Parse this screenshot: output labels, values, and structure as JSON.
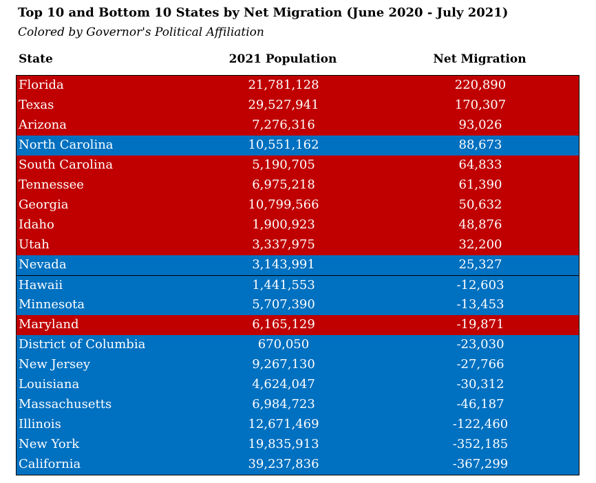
{
  "title": "Top 10 and Bottom 10 States by Net Migration (June 2020 - July 2021)",
  "subtitle": "Colored by Governor's Political Affiliation",
  "colors": {
    "red": "#c00000",
    "blue": "#0070c0",
    "text_on_fill": "#ffffff"
  },
  "chart_data": {
    "type": "table",
    "columns": [
      "State",
      "2021 Population",
      "Net Migration"
    ],
    "rows": [
      {
        "state": "Florida",
        "population": "21,781,128",
        "migration": "220,890",
        "party_color": "red"
      },
      {
        "state": "Texas",
        "population": "29,527,941",
        "migration": "170,307",
        "party_color": "red"
      },
      {
        "state": "Arizona",
        "population": "7,276,316",
        "migration": "93,026",
        "party_color": "red"
      },
      {
        "state": "North Carolina",
        "population": "10,551,162",
        "migration": "88,673",
        "party_color": "blue"
      },
      {
        "state": "South Carolina",
        "population": "5,190,705",
        "migration": "64,833",
        "party_color": "red"
      },
      {
        "state": "Tennessee",
        "population": "6,975,218",
        "migration": "61,390",
        "party_color": "red"
      },
      {
        "state": "Georgia",
        "population": "10,799,566",
        "migration": "50,632",
        "party_color": "red"
      },
      {
        "state": "Idaho",
        "population": "1,900,923",
        "migration": "48,876",
        "party_color": "red"
      },
      {
        "state": "Utah",
        "population": "3,337,975",
        "migration": "32,200",
        "party_color": "red"
      },
      {
        "state": "Nevada",
        "population": "3,143,991",
        "migration": "25,327",
        "party_color": "blue"
      },
      {
        "state": "Hawaii",
        "population": "1,441,553",
        "migration": "-12,603",
        "party_color": "blue"
      },
      {
        "state": "Minnesota",
        "population": "5,707,390",
        "migration": "-13,453",
        "party_color": "blue"
      },
      {
        "state": "Maryland",
        "population": "6,165,129",
        "migration": "-19,871",
        "party_color": "red"
      },
      {
        "state": "District of Columbia",
        "population": "670,050",
        "migration": "-23,030",
        "party_color": "blue"
      },
      {
        "state": "New Jersey",
        "population": "9,267,130",
        "migration": "-27,766",
        "party_color": "blue"
      },
      {
        "state": "Louisiana",
        "population": "4,624,047",
        "migration": "-30,312",
        "party_color": "blue"
      },
      {
        "state": "Massachusetts",
        "population": "6,984,723",
        "migration": "-46,187",
        "party_color": "blue"
      },
      {
        "state": "Illinois",
        "population": "12,671,469",
        "migration": "-122,460",
        "party_color": "blue"
      },
      {
        "state": "New York",
        "population": "19,835,913",
        "migration": "-352,185",
        "party_color": "blue"
      },
      {
        "state": "California",
        "population": "39,237,836",
        "migration": "-367,299",
        "party_color": "blue"
      }
    ]
  }
}
